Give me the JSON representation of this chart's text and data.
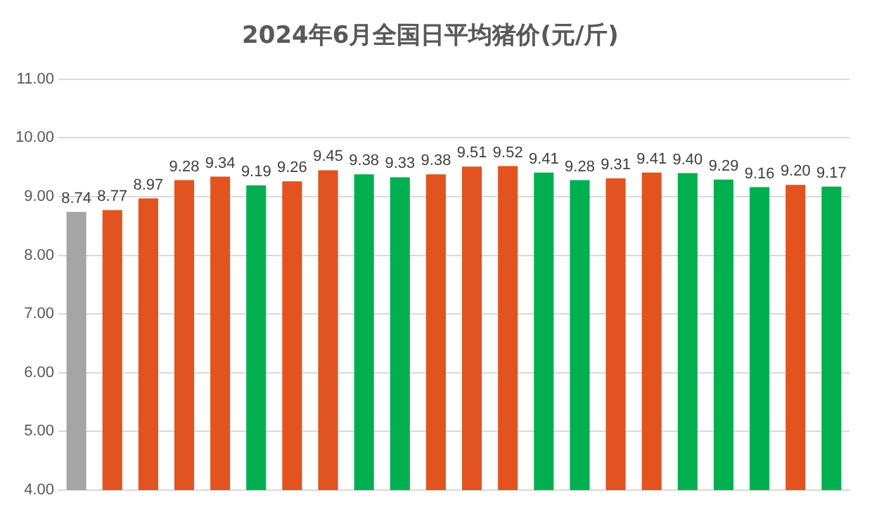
{
  "chart_data": {
    "type": "bar",
    "title": "2024年6月全国日平均猪价(元/斤)",
    "categories": [
      null,
      null,
      null,
      null,
      null,
      null,
      null,
      null,
      null,
      null,
      null,
      null,
      null,
      null,
      null,
      null,
      null,
      null,
      null,
      null,
      null,
      null
    ],
    "values": [
      8.74,
      8.77,
      8.97,
      9.28,
      9.34,
      9.19,
      9.26,
      9.45,
      9.38,
      9.33,
      9.38,
      9.51,
      9.52,
      9.41,
      9.28,
      9.31,
      9.41,
      9.4,
      9.29,
      9.16,
      9.2,
      9.17
    ],
    "value_labels": [
      "8.74",
      "8.77",
      "8.97",
      "9.28",
      "9.34",
      "9.19",
      "9.26",
      "9.45",
      "9.38",
      "9.33",
      "9.38",
      "9.51",
      "9.52",
      "9.41",
      "9.28",
      "9.31",
      "9.41",
      "9.40",
      "9.29",
      "9.16",
      "9.20",
      "9.17"
    ],
    "colors": [
      "#a5a5a5",
      "#e2531f",
      "#e2531f",
      "#e2531f",
      "#e2531f",
      "#00b050",
      "#e2531f",
      "#e2531f",
      "#00b050",
      "#00b050",
      "#e2531f",
      "#e2531f",
      "#e2531f",
      "#00b050",
      "#00b050",
      "#e2531f",
      "#e2531f",
      "#00b050",
      "#00b050",
      "#00b050",
      "#e2531f",
      "#00b050"
    ],
    "ylim": [
      4,
      11
    ],
    "yticks": [
      {
        "value": 4,
        "label": "4.00"
      },
      {
        "value": 5,
        "label": "5.00"
      },
      {
        "value": 6,
        "label": "6.00"
      },
      {
        "value": 7,
        "label": "7.00"
      },
      {
        "value": 8,
        "label": "8.00"
      },
      {
        "value": 9,
        "label": "9.00"
      },
      {
        "value": 10,
        "label": "10.00"
      },
      {
        "value": 11,
        "label": "11.00"
      }
    ],
    "grid": "y",
    "tick_labels": "y"
  }
}
